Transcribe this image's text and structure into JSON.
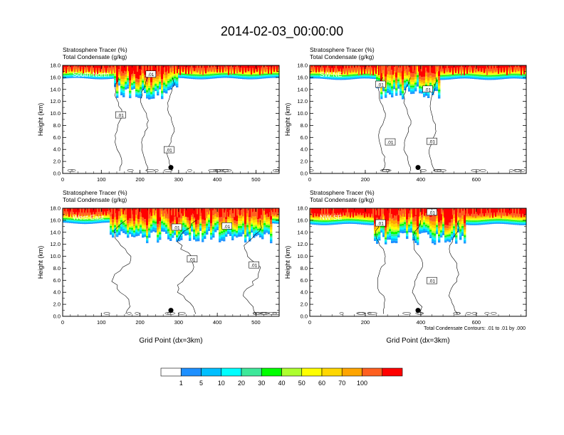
{
  "figure": {
    "title": "2014-02-03_00:00:00",
    "contour_note": "Total Condensate Contours: .01 to .01 by .000"
  },
  "colorbar": {
    "colors": [
      "#ffffff",
      "#1e90ff",
      "#00bfff",
      "#00ffff",
      "#3ee89a",
      "#00ff00",
      "#adff2f",
      "#ffff00",
      "#ffd700",
      "#ffa500",
      "#ff6020",
      "#ff0000"
    ],
    "labels": [
      "1",
      "5",
      "10",
      "20",
      "30",
      "40",
      "50",
      "60",
      "70",
      "100"
    ]
  },
  "chart_data": [
    {
      "type": "heatmap",
      "panel_label": "South-North",
      "title_lines": [
        "Stratosphere Tracer   (%)",
        "Total Condensate   (g/kg)"
      ],
      "ylabel": "Height (km)",
      "xlabel": "",
      "xlim": [
        0,
        560
      ],
      "ylim": [
        0,
        18
      ],
      "x_ticks": [
        "0",
        "100",
        "200",
        "300",
        "400",
        "500"
      ],
      "y_ticks": [
        "0.0",
        "2.0",
        "4.0",
        "6.0",
        "8.0",
        "10.0",
        "12.0",
        "14.0",
        "16.0",
        "18.0"
      ],
      "tracer_base_km": 15.8,
      "disturbed_ranges": [
        [
          130,
          300
        ]
      ],
      "contour_labels": [
        {
          "text": ".01",
          "x": 228,
          "y": 16.5
        },
        {
          "text": ".01",
          "x": 150,
          "y": 9.7
        },
        {
          "text": ".01",
          "x": 275,
          "y": 3.9
        }
      ],
      "marker": {
        "x": 280,
        "y": 1.0
      }
    },
    {
      "type": "heatmap",
      "panel_label": "SW-NE",
      "title_lines": [
        "Stratosphere Tracer   (%)",
        "Total Condensate   (g/kg)"
      ],
      "ylabel": "Height (km)",
      "xlabel": "",
      "xlim": [
        0,
        780
      ],
      "ylim": [
        0,
        18
      ],
      "x_ticks": [
        "0",
        "200",
        "400",
        "600"
      ],
      "y_ticks": [
        "0.0",
        "2.0",
        "4.0",
        "6.0",
        "8.0",
        "10.0",
        "12.0",
        "14.0",
        "16.0",
        "18.0"
      ],
      "tracer_base_km": 15.7,
      "disturbed_ranges": [
        [
          240,
          470
        ]
      ],
      "contour_labels": [
        {
          "text": ".01",
          "x": 255,
          "y": 14.8
        },
        {
          "text": ".01",
          "x": 425,
          "y": 14.0
        },
        {
          "text": ".01",
          "x": 290,
          "y": 5.2
        },
        {
          "text": ".01",
          "x": 440,
          "y": 5.3
        }
      ],
      "marker": {
        "x": 390,
        "y": 1.0
      }
    },
    {
      "type": "heatmap",
      "panel_label": "West-East",
      "title_lines": [
        "Stratosphere Tracer   (%)",
        "Total Condensate   (g/kg)"
      ],
      "ylabel": "Height (km)",
      "xlabel": "Grid Point (dx=3km)",
      "xlim": [
        0,
        560
      ],
      "ylim": [
        0,
        18
      ],
      "x_ticks": [
        "0",
        "100",
        "200",
        "300",
        "400",
        "500"
      ],
      "y_ticks": [
        "0.0",
        "2.0",
        "4.0",
        "6.0",
        "8.0",
        "10.0",
        "12.0",
        "14.0",
        "16.0",
        "18.0"
      ],
      "tracer_base_km": 15.5,
      "disturbed_ranges": [
        [
          120,
          540
        ]
      ],
      "contour_labels": [
        {
          "text": ".01",
          "x": 295,
          "y": 14.8
        },
        {
          "text": ".01",
          "x": 425,
          "y": 15.0
        },
        {
          "text": ".01",
          "x": 335,
          "y": 9.5
        },
        {
          "text": ".01",
          "x": 495,
          "y": 8.5
        }
      ],
      "marker": {
        "x": 280,
        "y": 1.0
      }
    },
    {
      "type": "heatmap",
      "panel_label": "NW-SE",
      "title_lines": [
        "Stratosphere Tracer   (%)",
        "Total Condensate   (g/kg)"
      ],
      "ylabel": "Height (km)",
      "xlabel": "Grid Point (dx=3km)",
      "xlim": [
        0,
        780
      ],
      "ylim": [
        0,
        18
      ],
      "x_ticks": [
        "0",
        "200",
        "400",
        "600"
      ],
      "y_ticks": [
        "0.0",
        "2.0",
        "4.0",
        "6.0",
        "8.0",
        "10.0",
        "12.0",
        "14.0",
        "16.0",
        "18.0"
      ],
      "tracer_base_km": 15.3,
      "disturbed_ranges": [
        [
          230,
          560
        ]
      ],
      "contour_labels": [
        {
          "text": ".01",
          "x": 440,
          "y": 17.3
        },
        {
          "text": ".01",
          "x": 255,
          "y": 15.5
        },
        {
          "text": ".01",
          "x": 440,
          "y": 5.9
        }
      ],
      "marker": {
        "x": 390,
        "y": 1.0
      }
    }
  ]
}
